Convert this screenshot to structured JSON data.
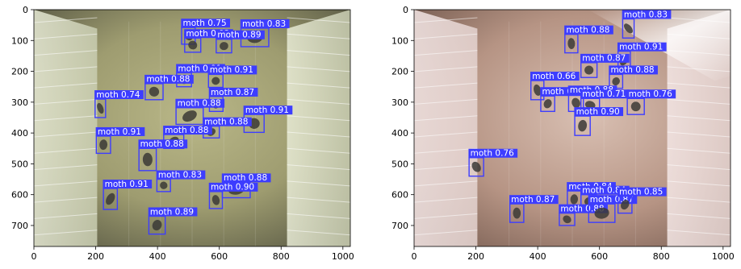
{
  "panels": [
    {
      "name": "left",
      "theme": "yellow",
      "xlim": [
        0,
        1024
      ],
      "ylim": [
        768,
        0
      ],
      "x_ticks": [
        0,
        200,
        400,
        600,
        800,
        1000
      ],
      "y_ticks": [
        0,
        100,
        200,
        300,
        400,
        500,
        600,
        700
      ],
      "detections": [
        {
          "label": "moth 0.75",
          "box": [
            478,
            58,
            522,
            112
          ]
        },
        {
          "label": "moth 0.83",
          "box": [
            670,
            60,
            760,
            120
          ]
        },
        {
          "label": "moth 0.92",
          "box": [
            488,
            92,
            540,
            138
          ]
        },
        {
          "label": "moth 0.89",
          "box": [
            590,
            96,
            640,
            140
          ]
        },
        {
          "label": "moth 0.91",
          "box": [
            462,
            205,
            510,
            250
          ]
        },
        {
          "label": "moth 0.91",
          "box": [
            565,
            210,
            612,
            252
          ]
        },
        {
          "label": "moth 0.88",
          "box": [
            360,
            240,
            418,
            292
          ]
        },
        {
          "label": "moth 0.74",
          "box": [
            198,
            290,
            232,
            350
          ]
        },
        {
          "label": "moth 0.87",
          "box": [
            568,
            282,
            612,
            330
          ]
        },
        {
          "label": "moth 0.88",
          "box": [
            460,
            318,
            548,
            372
          ]
        },
        {
          "label": "moth 0.91",
          "box": [
            680,
            340,
            745,
            398
          ]
        },
        {
          "label": "moth 0.88",
          "box": [
            548,
            378,
            600,
            416
          ]
        },
        {
          "label": "moth 0.91",
          "box": [
            202,
            410,
            248,
            466
          ]
        },
        {
          "label": "moth 0.88",
          "box": [
            420,
            405,
            485,
            450
          ]
        },
        {
          "label": "moth 0.88",
          "box": [
            340,
            450,
            396,
            522
          ]
        },
        {
          "label": "moth 0.83",
          "box": [
            398,
            550,
            442,
            590
          ]
        },
        {
          "label": "moth 0.88",
          "box": [
            610,
            560,
            700,
            610
          ]
        },
        {
          "label": "moth 0.91",
          "box": [
            225,
            580,
            270,
            648
          ]
        },
        {
          "label": "moth 0.90",
          "box": [
            568,
            590,
            610,
            645
          ]
        },
        {
          "label": "moth 0.89",
          "box": [
            372,
            670,
            425,
            728
          ]
        }
      ]
    },
    {
      "name": "right",
      "theme": "pink",
      "xlim": [
        0,
        1024
      ],
      "ylim": [
        768,
        0
      ],
      "x_ticks": [
        0,
        200,
        400,
        600,
        800,
        1000
      ],
      "y_ticks": [
        0,
        100,
        200,
        300,
        400,
        500,
        600,
        700
      ],
      "detections": [
        {
          "label": "moth 0.83",
          "box": [
            675,
            30,
            712,
            92
          ]
        },
        {
          "label": "moth 0.88",
          "box": [
            488,
            80,
            530,
            140
          ]
        },
        {
          "label": "moth 0.91",
          "box": [
            660,
            135,
            700,
            195
          ]
        },
        {
          "label": "moth 0.87",
          "box": [
            540,
            172,
            592,
            220
          ]
        },
        {
          "label": "moth 0.88",
          "box": [
            632,
            210,
            675,
            255
          ]
        },
        {
          "label": "moth 0.66",
          "box": [
            378,
            230,
            420,
            292
          ]
        },
        {
          "label": "moth 0.89",
          "box": [
            410,
            280,
            455,
            330
          ]
        },
        {
          "label": "moth 0.88",
          "box": [
            500,
            275,
            548,
            330
          ]
        },
        {
          "label": "moth 0.71",
          "box": [
            540,
            288,
            600,
            330
          ]
        },
        {
          "label": "moth 0.76",
          "box": [
            690,
            288,
            745,
            340
          ]
        },
        {
          "label": "moth 0.90",
          "box": [
            520,
            345,
            570,
            408
          ]
        },
        {
          "label": "moth 0.76",
          "box": [
            178,
            480,
            225,
            540
          ]
        },
        {
          "label": "moth 0.84",
          "box": [
            496,
            588,
            540,
            642
          ]
        },
        {
          "label": "moth 0.84",
          "box": [
            540,
            600,
            590,
            645
          ]
        },
        {
          "label": "moth 0.87",
          "box": [
            310,
            630,
            355,
            690
          ]
        },
        {
          "label": "moth 0.88",
          "box": [
            470,
            660,
            520,
            700
          ]
        },
        {
          "label": "moth 0.87",
          "box": [
            565,
            630,
            650,
            690
          ]
        },
        {
          "label": "moth 0.85",
          "box": [
            660,
            605,
            705,
            660
          ]
        }
      ]
    }
  ]
}
